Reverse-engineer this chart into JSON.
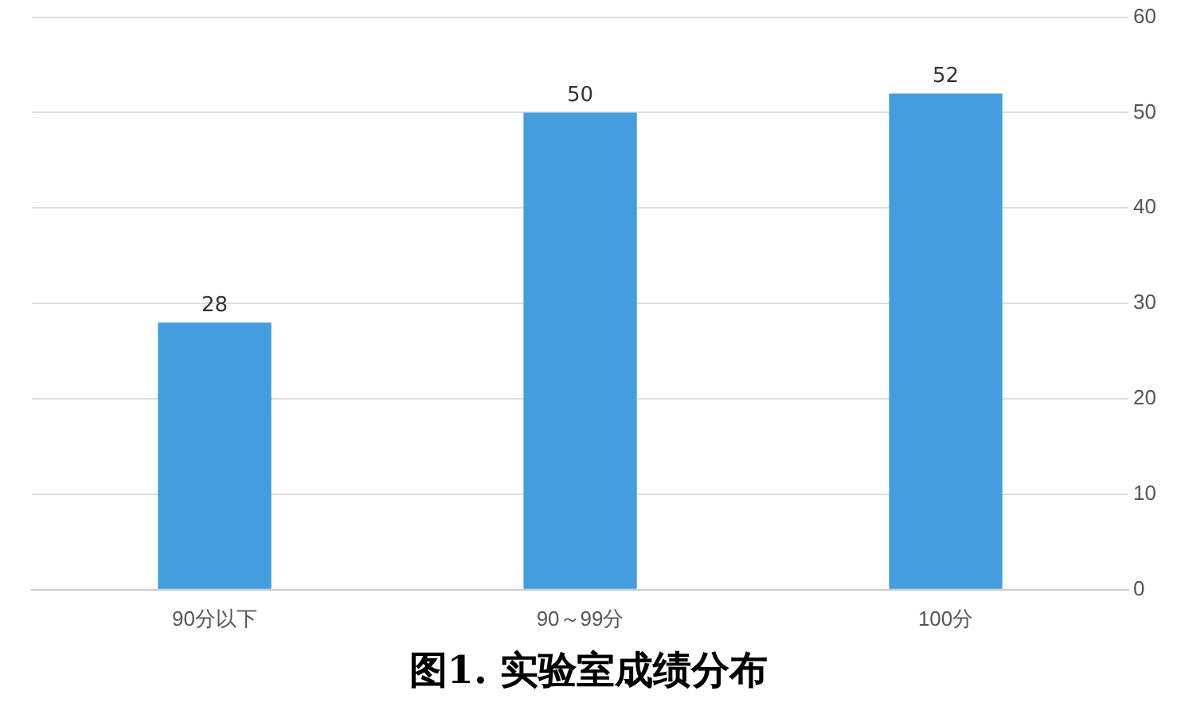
{
  "chart_data": {
    "type": "bar",
    "title": "图1. 实验室成绩分布",
    "categories": [
      "90分以下",
      "90～99分",
      "100分"
    ],
    "values": [
      28,
      50,
      52
    ],
    "color": "#449ddc",
    "ylim": [
      0,
      60
    ],
    "yticks": [
      0,
      10,
      20,
      30,
      40,
      50,
      60
    ],
    "grid": "y",
    "data_labels": true,
    "legend": false
  }
}
